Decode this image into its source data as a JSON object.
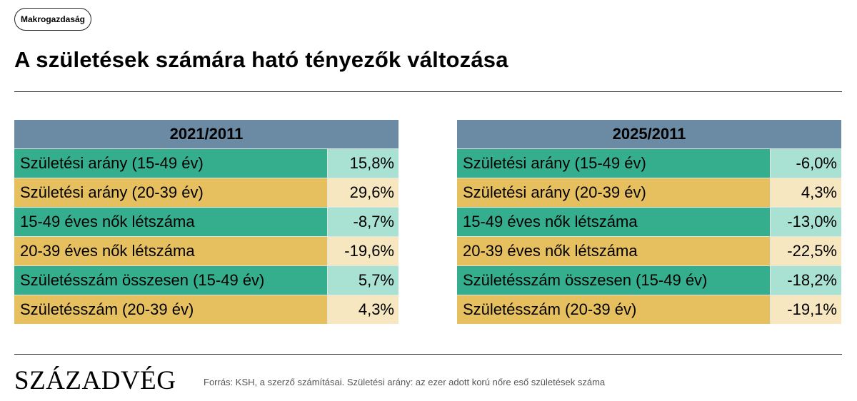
{
  "tag": "Makrogazdaság",
  "title": "A születések számára ható tényezők változása",
  "chart_data": [
    {
      "type": "table",
      "header": "2021/2011",
      "rows": [
        {
          "label": "Születési arány (15-49 év)",
          "value": "15,8%",
          "num": 15.8
        },
        {
          "label": "Születési arány (20-39 év)",
          "value": "29,6%",
          "num": 29.6
        },
        {
          "label": "15-49 éves nők létszáma",
          "value": "-8,7%",
          "num": -8.7
        },
        {
          "label": "20-39 éves nők létszáma",
          "value": "-19,6%",
          "num": -19.6
        },
        {
          "label": "Születésszám összesen (15-49 év)",
          "value": "5,7%",
          "num": 5.7
        },
        {
          "label": "Születésszám (20-39 év)",
          "value": "4,3%",
          "num": 4.3
        }
      ]
    },
    {
      "type": "table",
      "header": "2025/2011",
      "rows": [
        {
          "label": "Születési arány (15-49 év)",
          "value": "-6,0%",
          "num": -6.0
        },
        {
          "label": "Születési arány (20-39 év)",
          "value": "4,3%",
          "num": 4.3
        },
        {
          "label": "15-49 éves nők létszáma",
          "value": "-13,0%",
          "num": -13.0
        },
        {
          "label": "20-39 éves nők létszáma",
          "value": "-22,5%",
          "num": -22.5
        },
        {
          "label": "Születésszám összesen (15-49 év)",
          "value": "-18,2%",
          "num": -18.2
        },
        {
          "label": "Születésszám (20-39 év)",
          "value": "-19,1%",
          "num": -19.1
        }
      ]
    }
  ],
  "colors": {
    "header": "#6b8ba4",
    "green_label": "#35ae8e",
    "green_value": "#a9e2d2",
    "yellow_label": "#e6bf5e",
    "yellow_value": "#f6e7c0"
  },
  "footer": {
    "logo": "SZÁZADVÉG",
    "source": "Forrás: KSH, a szerző számításai. Születési arány: az ezer adott korú nőre eső születések száma"
  }
}
